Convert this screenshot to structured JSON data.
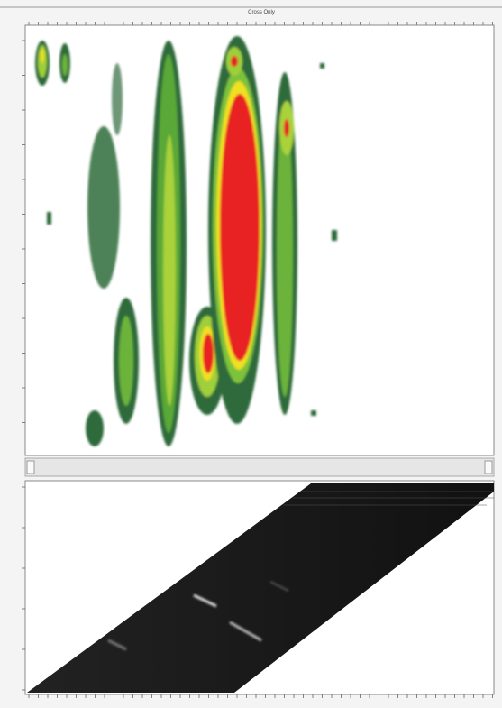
{
  "window": {
    "title": "Cross Only"
  }
}
